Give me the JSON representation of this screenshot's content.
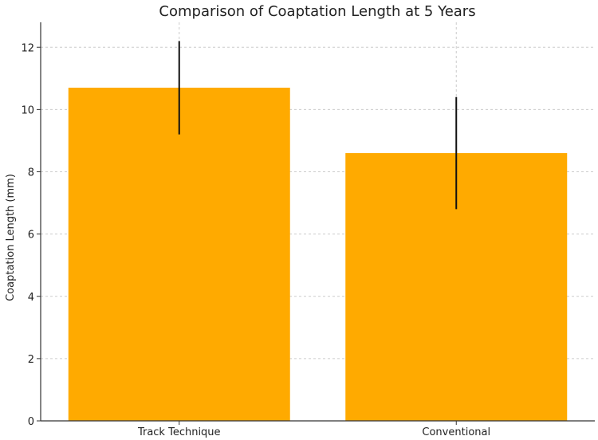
{
  "chart_data": {
    "type": "bar",
    "title": "Comparison of Coaptation Length at 5 Years",
    "xlabel": "",
    "ylabel": "Coaptation Length (mm)",
    "categories": [
      "Track Technique",
      "Conventional"
    ],
    "values": [
      10.7,
      8.6
    ],
    "error": [
      1.5,
      1.8
    ],
    "ylim": [
      0,
      12.8
    ],
    "yticks": [
      0,
      2,
      4,
      6,
      8,
      10,
      12
    ],
    "grid": true,
    "bar_color": "#FFAA00",
    "error_color": "#111111"
  }
}
